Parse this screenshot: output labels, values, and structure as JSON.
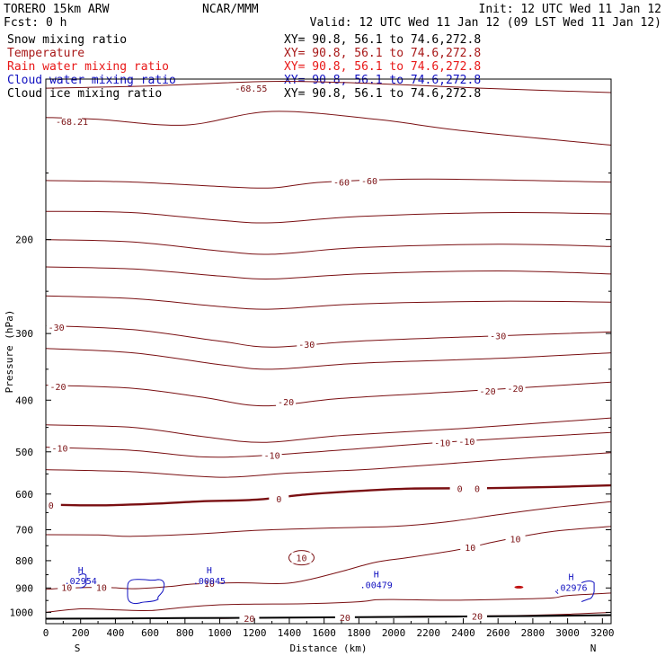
{
  "header": {
    "model": "TORERO  15km ARW",
    "org": "NCAR/MMM",
    "init": "Init: 12 UTC Wed 11 Jan 12",
    "fcst": "Fcst:     0 h",
    "valid": "Valid: 12 UTC Wed 11 Jan 12 (09 LST Wed 11 Jan 12)"
  },
  "fields": [
    {
      "name": "Snow mixing ratio",
      "xy": "XY=  90.8, 56.1 to  74.6,272.8",
      "color": "#000000"
    },
    {
      "name": "Temperature",
      "xy": "XY=  90.8, 56.1 to  74.6,272.8",
      "color": "#a81818"
    },
    {
      "name": "Rain water mixing ratio",
      "xy": "XY=  90.8, 56.1 to  74.6,272.8",
      "color": "#e81818"
    },
    {
      "name": "Cloud water mixing ratio",
      "xy": "XY=  90.8, 56.1 to  74.6,272.8",
      "color": "#1010c0"
    },
    {
      "name": "Cloud ice mixing ratio",
      "xy": "XY=  90.8, 56.1 to  74.6,272.8",
      "color": "#000000"
    }
  ],
  "colors": {
    "temperature": "#7a0f12",
    "cloud_water": "#1010c0",
    "rain": "#c01010",
    "terrain": "#000000"
  },
  "chart_data": {
    "type": "line",
    "xlabel": "Distance (km)",
    "ylabel": "Pressure (hPa)",
    "xlim": [
      0,
      3250
    ],
    "ylim": [
      1050,
      100
    ],
    "y_axis": "log-pressure",
    "x_ticks": [
      "0",
      "200",
      "400",
      "600",
      "800",
      "1000",
      "1200",
      "1400",
      "1600",
      "1800",
      "2000",
      "2200",
      "2400",
      "2600",
      "2800",
      "3000",
      "3200"
    ],
    "x_tick_values": [
      0,
      200,
      400,
      600,
      800,
      1000,
      1200,
      1400,
      1600,
      1800,
      2000,
      2200,
      2400,
      2600,
      2800,
      3000,
      3200
    ],
    "y_ticks": [
      "200",
      "300",
      "400",
      "500",
      "600",
      "700",
      "800",
      "900",
      "1000"
    ],
    "y_tick_values": [
      200,
      300,
      400,
      500,
      600,
      700,
      800,
      900,
      1000
    ],
    "endpoint_labels": {
      "start": "S",
      "end": "N"
    },
    "temperature_isotherms": [
      {
        "label": "-68.55",
        "values": [
          [
            0,
            104
          ],
          [
            600,
            103
          ],
          [
            1300,
            101
          ],
          [
            1900,
            102
          ],
          [
            2500,
            104
          ],
          [
            3250,
            106
          ]
        ]
      },
      {
        "label": "-68.21",
        "values": [
          [
            0,
            118
          ],
          [
            300,
            119
          ],
          [
            800,
            122
          ],
          [
            1300,
            115
          ],
          [
            1900,
            119
          ],
          [
            2400,
            125
          ],
          [
            3250,
            133
          ]
        ]
      },
      {
        "label": "-60",
        "values": [
          [
            0,
            155
          ],
          [
            500,
            156
          ],
          [
            1000,
            159
          ],
          [
            1300,
            160
          ],
          [
            1600,
            156
          ],
          [
            2200,
            154
          ],
          [
            3250,
            156
          ]
        ]
      },
      {
        "label": "",
        "values": [
          [
            0,
            177
          ],
          [
            500,
            178
          ],
          [
            1000,
            184
          ],
          [
            1300,
            186
          ],
          [
            1800,
            181
          ],
          [
            2600,
            178
          ],
          [
            3250,
            179
          ]
        ]
      },
      {
        "label": "",
        "values": [
          [
            0,
            200
          ],
          [
            500,
            202
          ],
          [
            1000,
            210
          ],
          [
            1300,
            213
          ],
          [
            1800,
            207
          ],
          [
            2600,
            204
          ],
          [
            3250,
            206
          ]
        ]
      },
      {
        "label": "",
        "values": [
          [
            0,
            225
          ],
          [
            500,
            227
          ],
          [
            1000,
            234
          ],
          [
            1300,
            237
          ],
          [
            1800,
            232
          ],
          [
            2600,
            229
          ],
          [
            3250,
            232
          ]
        ]
      },
      {
        "label": "",
        "values": [
          [
            0,
            255
          ],
          [
            500,
            258
          ],
          [
            1000,
            267
          ],
          [
            1300,
            270
          ],
          [
            1800,
            264
          ],
          [
            2600,
            261
          ],
          [
            3250,
            262
          ]
        ]
      },
      {
        "label": "-30",
        "values": [
          [
            0,
            290
          ],
          [
            500,
            295
          ],
          [
            1000,
            310
          ],
          [
            1300,
            318
          ],
          [
            1800,
            310
          ],
          [
            2600,
            303
          ],
          [
            3250,
            298
          ]
        ]
      },
      {
        "label": "",
        "values": [
          [
            0,
            320
          ],
          [
            500,
            326
          ],
          [
            1000,
            343
          ],
          [
            1300,
            350
          ],
          [
            1800,
            341
          ],
          [
            2600,
            334
          ],
          [
            3250,
            326
          ]
        ]
      },
      {
        "label": "-20",
        "values": [
          [
            0,
            375
          ],
          [
            500,
            380
          ],
          [
            900,
            395
          ],
          [
            1250,
            410
          ],
          [
            1700,
            397
          ],
          [
            2400,
            385
          ],
          [
            3250,
            370
          ]
        ]
      },
      {
        "label": "",
        "values": [
          [
            0,
            445
          ],
          [
            500,
            450
          ],
          [
            900,
            468
          ],
          [
            1250,
            480
          ],
          [
            1700,
            466
          ],
          [
            2400,
            452
          ],
          [
            3250,
            432
          ]
        ]
      },
      {
        "label": "-10",
        "values": [
          [
            0,
            490
          ],
          [
            500,
            497
          ],
          [
            900,
            511
          ],
          [
            1250,
            508
          ],
          [
            1700,
            496
          ],
          [
            2400,
            477
          ],
          [
            3250,
            460
          ]
        ]
      },
      {
        "label": "",
        "values": [
          [
            0,
            540
          ],
          [
            500,
            545
          ],
          [
            1000,
            558
          ],
          [
            1400,
            548
          ],
          [
            1900,
            538
          ],
          [
            2600,
            518
          ],
          [
            3250,
            502
          ]
        ]
      },
      {
        "label": "0",
        "bold": true,
        "values": [
          [
            0,
            628
          ],
          [
            300,
            630
          ],
          [
            600,
            626
          ],
          [
            900,
            619
          ],
          [
            1200,
            615
          ],
          [
            1500,
            601
          ],
          [
            1800,
            592
          ],
          [
            2100,
            586
          ],
          [
            2500,
            585
          ],
          [
            2900,
            582
          ],
          [
            3250,
            578
          ]
        ]
      },
      {
        "label": "",
        "values": [
          [
            0,
            715
          ],
          [
            300,
            716
          ],
          [
            500,
            720
          ],
          [
            900,
            712
          ],
          [
            1200,
            702
          ],
          [
            1600,
            695
          ],
          [
            2000,
            690
          ],
          [
            2300,
            677
          ],
          [
            2600,
            656
          ],
          [
            2900,
            637
          ],
          [
            3250,
            620
          ]
        ]
      },
      {
        "label": "10",
        "values": [
          [
            0,
            905
          ],
          [
            150,
            900
          ],
          [
            350,
            898
          ],
          [
            500,
            903
          ],
          [
            700,
            895
          ],
          [
            850,
            885
          ],
          [
            1100,
            880
          ],
          [
            1350,
            883
          ],
          [
            1500,
            870
          ],
          [
            1700,
            838
          ],
          [
            1900,
            805
          ],
          [
            2100,
            788
          ],
          [
            2400,
            760
          ],
          [
            2600,
            735
          ],
          [
            2900,
            706
          ],
          [
            3250,
            690
          ]
        ]
      },
      {
        "label": "",
        "values": [
          [
            0,
            1000
          ],
          [
            200,
            985
          ],
          [
            400,
            989
          ],
          [
            600,
            992
          ],
          [
            800,
            978
          ],
          [
            1000,
            968
          ],
          [
            1200,
            965
          ],
          [
            1500,
            963
          ],
          [
            1800,
            955
          ],
          [
            1900,
            947
          ],
          [
            2000,
            946
          ],
          [
            2300,
            949
          ],
          [
            2600,
            946
          ],
          [
            2900,
            940
          ],
          [
            3000,
            930
          ],
          [
            3250,
            920
          ]
        ]
      },
      {
        "label": "20",
        "values": [
          [
            1000,
            1027
          ],
          [
            1300,
            1024
          ],
          [
            1700,
            1022
          ],
          [
            2000,
            1018
          ],
          [
            2400,
            1016
          ],
          [
            2700,
            1014
          ],
          [
            3000,
            1008
          ],
          [
            3250,
            1000
          ]
        ]
      }
    ],
    "cloud_water_maxima": [
      {
        "label": "H",
        "value": ".02954",
        "x": 200,
        "p": 865
      },
      {
        "label": "H",
        "value": ".00045",
        "x": 940,
        "p": 865
      },
      {
        "label": "H",
        "value": ".00479",
        "x": 1900,
        "p": 880
      },
      {
        "label": "H",
        "value": ".02976",
        "x": 3020,
        "p": 890
      }
    ]
  }
}
